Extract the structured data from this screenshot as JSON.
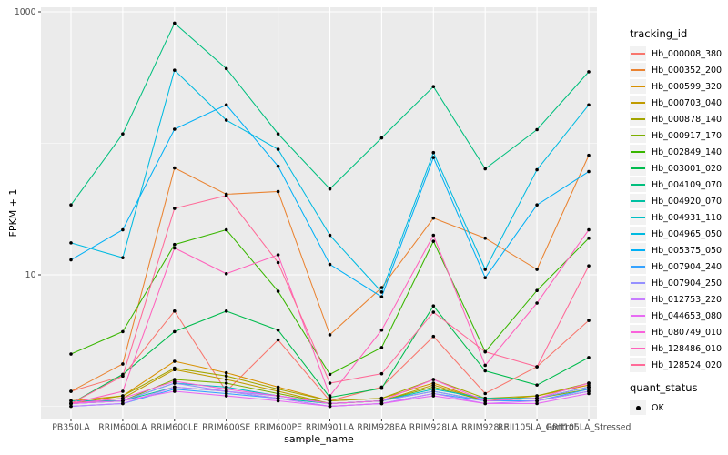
{
  "figure": {
    "panel_bg": "#EBEBEB",
    "grid_color": "#FFFFFF",
    "point_color": "#000000",
    "tick_text_color": "#4D4D4D",
    "legend": {
      "tracking_title": "tracking_id",
      "quant_title": "quant_status",
      "quant_ok_label": "OK"
    }
  },
  "chart_data": {
    "type": "line",
    "title": "",
    "xlabel": "sample_name",
    "ylabel": "FPKM + 1",
    "y_scale": "log10",
    "ylim": [
      0.81,
      1080
    ],
    "y_ticks": [
      10,
      1000
    ],
    "y_tick_labels": [
      "10",
      "1000"
    ],
    "y_minor_gridlines": [
      1,
      100
    ],
    "grid": true,
    "legend_position": "right",
    "point_marker": "black dot (quant_status = OK)",
    "categories": [
      "PB350LA",
      "RRIM600LA",
      "RRIM600LE",
      "RRIM600SE",
      "RRIM600PE",
      "RRIM901LA",
      "RRIM928BA",
      "RRIM928LA",
      "RRIM928LE",
      "RRII105LA_Control",
      "RRII105LA_Stressed"
    ],
    "series": [
      {
        "name": "Hb_000008_380",
        "color": "#F8766D",
        "values": [
          1.3,
          1.7,
          5.3,
          1.3,
          3.2,
          1.1,
          1.4,
          3.4,
          1.25,
          2.0,
          4.5
        ]
      },
      {
        "name": "Hb_000352_200",
        "color": "#EA8331",
        "values": [
          1.3,
          2.1,
          65,
          41,
          43,
          3.5,
          8,
          27,
          19,
          11,
          81
        ]
      },
      {
        "name": "Hb_000599_320",
        "color": "#D89000",
        "values": [
          1.1,
          1.2,
          2.2,
          1.8,
          1.4,
          1.1,
          1.15,
          1.5,
          1.1,
          1.2,
          1.45
        ]
      },
      {
        "name": "Hb_000703_040",
        "color": "#C09B00",
        "values": [
          1.05,
          1.15,
          1.9,
          1.6,
          1.3,
          1.05,
          1.1,
          1.45,
          1.1,
          1.15,
          1.4
        ]
      },
      {
        "name": "Hb_000878_140",
        "color": "#A3A500",
        "values": [
          1.05,
          1.2,
          1.95,
          1.7,
          1.35,
          1.1,
          1.15,
          1.6,
          1.15,
          1.2,
          1.5
        ]
      },
      {
        "name": "Hb_000917_170",
        "color": "#7CAE00",
        "values": [
          1.05,
          1.1,
          1.6,
          1.5,
          1.25,
          1.05,
          1.1,
          1.4,
          1.1,
          1.15,
          1.35
        ]
      },
      {
        "name": "Hb_002849_140",
        "color": "#39B600",
        "values": [
          2.5,
          3.7,
          17,
          22,
          7.5,
          1.75,
          2.8,
          18,
          2.6,
          7.6,
          19
        ]
      },
      {
        "name": "Hb_003001_020",
        "color": "#00BB4E",
        "values": [
          1.05,
          1.75,
          3.7,
          5.3,
          3.8,
          1.17,
          1.37,
          5.8,
          1.86,
          1.45,
          2.35
        ]
      },
      {
        "name": "Hb_004109_070",
        "color": "#00BF7D",
        "values": [
          34,
          118,
          820,
          370,
          118,
          45,
          110,
          270,
          64,
          127,
          350
        ]
      },
      {
        "name": "Hb_004920_070",
        "color": "#00C1A3",
        "values": [
          1.1,
          1.1,
          1.4,
          1.3,
          1.15,
          1.05,
          1.1,
          1.3,
          1.1,
          1.1,
          1.3
        ]
      },
      {
        "name": "Hb_004931_110",
        "color": "#00BFC4",
        "values": [
          1.05,
          1.1,
          1.5,
          1.4,
          1.2,
          1.05,
          1.1,
          1.35,
          1.15,
          1.15,
          1.4
        ]
      },
      {
        "name": "Hb_004965_050",
        "color": "#00BAE0",
        "values": [
          17.5,
          13.5,
          360,
          150,
          90,
          20,
          7.4,
          85,
          11,
          63,
          196
        ]
      },
      {
        "name": "Hb_005375_050",
        "color": "#00B0F6",
        "values": [
          13,
          22,
          128,
          196,
          67,
          12,
          6.8,
          78,
          9.5,
          34,
          61
        ]
      },
      {
        "name": "Hb_007904_240",
        "color": "#35A2FF",
        "values": [
          1.0,
          1.05,
          1.35,
          1.25,
          1.15,
          1.0,
          1.05,
          1.25,
          1.1,
          1.1,
          1.35
        ]
      },
      {
        "name": "Hb_007904_250",
        "color": "#9590FF",
        "values": [
          1.05,
          1.1,
          1.5,
          1.3,
          1.2,
          1.05,
          1.1,
          1.3,
          1.1,
          1.15,
          1.4
        ]
      },
      {
        "name": "Hb_012753_220",
        "color": "#C77CFF",
        "values": [
          1.0,
          1.05,
          1.4,
          1.3,
          1.15,
          1.0,
          1.05,
          1.25,
          1.05,
          1.1,
          1.3
        ]
      },
      {
        "name": "Hb_044653_080",
        "color": "#E76BF3",
        "values": [
          1.05,
          1.1,
          1.3,
          1.2,
          1.1,
          1.0,
          1.05,
          1.2,
          1.05,
          1.05,
          1.25
        ]
      },
      {
        "name": "Hb_080749_010",
        "color": "#FA62DB",
        "values": [
          1.05,
          1.15,
          1.55,
          1.35,
          1.2,
          1.05,
          1.1,
          1.6,
          1.1,
          1.15,
          1.5
        ]
      },
      {
        "name": "Hb_128486_010",
        "color": "#FF62BC",
        "values": [
          1.05,
          1.3,
          16,
          10.2,
          14.2,
          1.2,
          3.8,
          20,
          2.05,
          6.1,
          22
        ]
      },
      {
        "name": "Hb_128524_020",
        "color": "#FF6A98",
        "values": [
          1.05,
          1.7,
          32,
          40,
          12.4,
          1.5,
          1.77,
          5.2,
          2.6,
          2.0,
          11.7
        ]
      }
    ]
  }
}
